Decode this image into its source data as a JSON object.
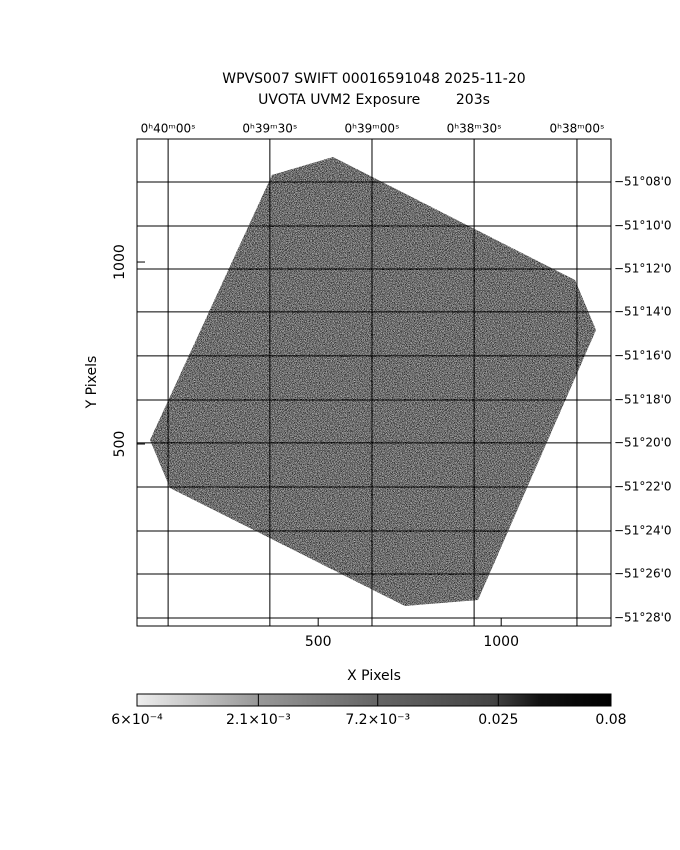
{
  "chart_data": {
    "type": "image",
    "title": "WPVS007 SWIFT 00016591048 2025-11-20",
    "subtitle": "UVOTA UVM2 Exposure        203s",
    "xlabel": "X Pixels",
    "ylabel": "Y Pixels",
    "xlim": [
      5,
      1300
    ],
    "ylim": [
      0,
      1338
    ],
    "xticks": [
      500,
      1000
    ],
    "yticks": [
      500,
      1000
    ],
    "x2ticks": [
      {
        "value": 90,
        "label": "0ʰ40ᵐ00ˢ"
      },
      {
        "value": 368,
        "label": "0ʰ39ᵐ30ˢ"
      },
      {
        "value": 647,
        "label": "0ʰ39ᵐ00ˢ"
      },
      {
        "value": 926,
        "label": "0ʰ38ᵐ30ˢ"
      },
      {
        "value": 1207,
        "label": "0ʰ38ᵐ00ˢ"
      }
    ],
    "y2ticks": [
      {
        "value": 1220,
        "label": "−51°08'0"
      },
      {
        "value": 1099,
        "label": "−51°10'0"
      },
      {
        "value": 981,
        "label": "−51°12'0"
      },
      {
        "value": 863,
        "label": "−51°14'0"
      },
      {
        "value": 742,
        "label": "−51°16'0"
      },
      {
        "value": 621,
        "label": "−51°18'0"
      },
      {
        "value": 503,
        "label": "−51°20'0"
      },
      {
        "value": 382,
        "label": "−51°22'0"
      },
      {
        "value": 261,
        "label": "−51°24'0"
      },
      {
        "value": 143,
        "label": "−51°26'0"
      },
      {
        "value": 22,
        "label": "−51°28'0"
      }
    ],
    "colorbar": {
      "scale": "log",
      "lim": [
        0.0006,
        0.08
      ],
      "ticks": [
        {
          "value": 0.0006,
          "label": "6×10⁻⁴"
        },
        {
          "value": 0.0021,
          "label": "2.1×10⁻³"
        },
        {
          "value": 0.0072,
          "label": "7.2×10⁻³"
        },
        {
          "value": 0.025,
          "label": "0.025"
        },
        {
          "value": 0.08,
          "label": "0.08"
        }
      ]
    },
    "grid": true
  }
}
